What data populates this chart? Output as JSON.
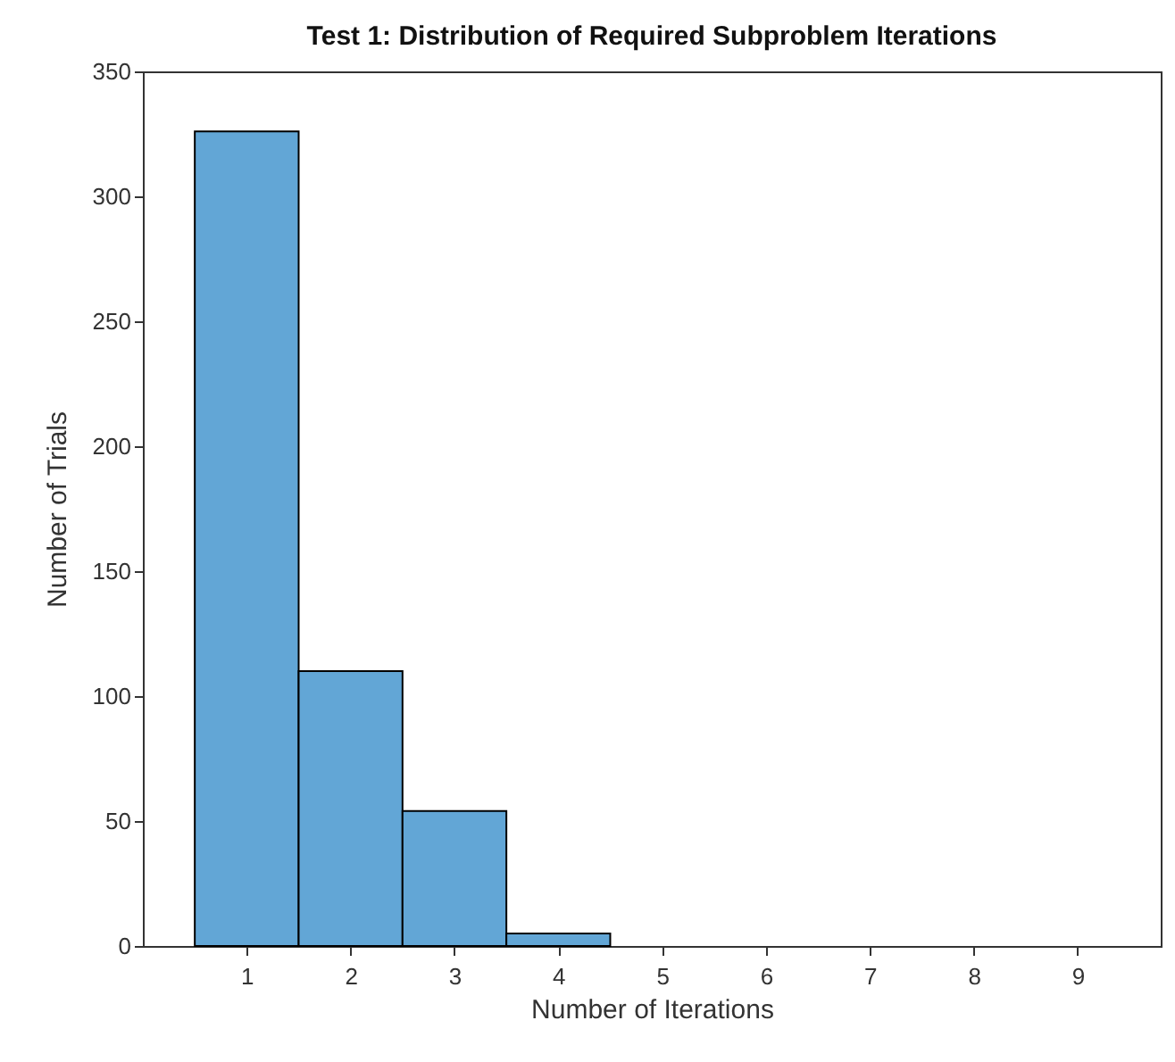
{
  "chart_data": {
    "type": "histogram",
    "title": "Test 1: Distribution of Required Subproblem Iterations",
    "xlabel": "Number of Iterations",
    "ylabel": "Number of Trials",
    "bins": [
      0.5,
      1.5,
      2.5,
      3.5,
      4.5
    ],
    "values": [
      326,
      110,
      54,
      5
    ],
    "color": "#62a6d6",
    "xlim": [
      0,
      9.8
    ],
    "xticks": [
      1,
      2,
      3,
      4,
      5,
      6,
      7,
      8,
      9
    ],
    "ylim": [
      0,
      350
    ],
    "yticks": [
      0,
      50,
      100,
      150,
      200,
      250,
      300,
      350
    ],
    "grid": false
  }
}
